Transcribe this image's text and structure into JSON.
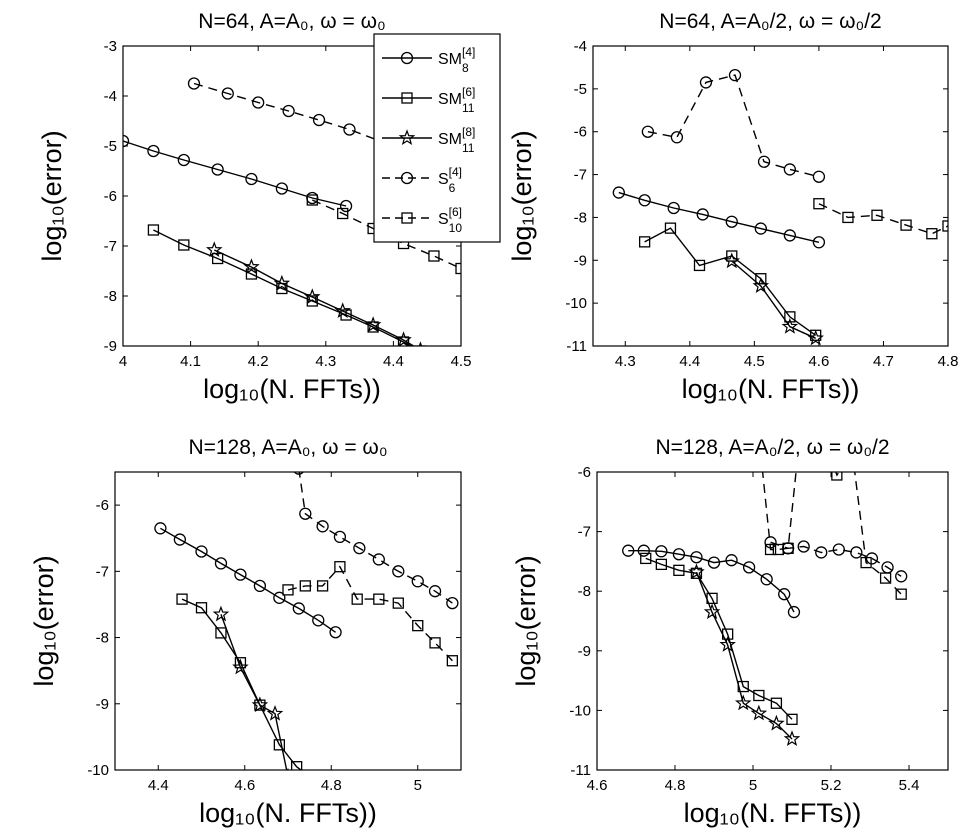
{
  "chart_data": [
    {
      "type": "line",
      "title": "N=64,  A=A₀,  ω = ω₀",
      "xlabel": "log₁₀(N. FFTs))",
      "ylabel": "log₁₀(error)",
      "xlim": [
        4,
        4.5
      ],
      "ylim": [
        -9,
        -3
      ],
      "xticks": [
        "4",
        "4.1",
        "4.2",
        "4.3",
        "4.4",
        "4.5"
      ],
      "yticks": [
        "-9",
        "-8",
        "-7",
        "-6",
        "-5",
        "-4",
        "-3"
      ],
      "legend": {
        "placement": "top-right",
        "entries": [
          {
            "name": "SM",
            "sup": "[4]",
            "sub": "8",
            "marker": "circle",
            "dash": false
          },
          {
            "name": "SM",
            "sup": "[6]",
            "sub": "11",
            "marker": "square",
            "dash": false
          },
          {
            "name": "SM",
            "sup": "[8]",
            "sub": "11",
            "marker": "star",
            "dash": false
          },
          {
            "name": "S",
            "sup": "[4]",
            "sub": "6",
            "marker": "circle",
            "dash": true
          },
          {
            "name": "S",
            "sup": "[6]",
            "sub": "10",
            "marker": "square",
            "dash": true
          }
        ]
      },
      "series": [
        {
          "marker": "circle",
          "dash": false,
          "x": [
            4.0,
            4.045,
            4.09,
            4.14,
            4.19,
            4.235,
            4.28,
            4.33
          ],
          "y": [
            -4.9,
            -5.1,
            -5.28,
            -5.47,
            -5.66,
            -5.85,
            -6.04,
            -6.2
          ]
        },
        {
          "marker": "square",
          "dash": false,
          "x": [
            4.045,
            4.09,
            4.14,
            4.19,
            4.235,
            4.28,
            4.33,
            4.37,
            4.415,
            4.44
          ],
          "y": [
            -6.68,
            -6.98,
            -7.25,
            -7.56,
            -7.85,
            -8.1,
            -8.38,
            -8.62,
            -8.92,
            -9.1
          ]
        },
        {
          "marker": "star",
          "dash": false,
          "x": [
            4.135,
            4.19,
            4.235,
            4.28,
            4.325,
            4.37,
            4.415,
            4.44
          ],
          "y": [
            -7.08,
            -7.42,
            -7.75,
            -8.02,
            -8.3,
            -8.58,
            -8.88,
            -9.08
          ]
        },
        {
          "marker": "circle",
          "dash": true,
          "x": [
            4.105,
            4.155,
            4.2,
            4.245,
            4.29,
            4.335,
            4.38,
            4.42,
            4.46,
            4.5
          ],
          "y": [
            -3.75,
            -3.95,
            -4.13,
            -4.3,
            -4.48,
            -4.67,
            -4.9,
            -5.2,
            -5.55,
            -5.9
          ]
        },
        {
          "marker": "square",
          "dash": true,
          "x": [
            4.28,
            4.325,
            4.37,
            4.415,
            4.46,
            4.5
          ],
          "y": [
            -6.08,
            -6.35,
            -6.65,
            -6.95,
            -7.2,
            -7.45
          ]
        }
      ]
    },
    {
      "type": "line",
      "title": "N=64,  A=A₀/2,  ω = ω₀/2",
      "xlabel": "log₁₀(N. FFTs))",
      "ylabel": "log₁₀(error)",
      "xlim": [
        4.25,
        4.8
      ],
      "ylim": [
        -11,
        -4
      ],
      "xticks": [
        "4.3",
        "4.4",
        "4.5",
        "4.6",
        "4.7",
        "4.8"
      ],
      "yticks": [
        "-11",
        "-10",
        "-9",
        "-8",
        "-7",
        "-6",
        "-5",
        "-4"
      ],
      "series": [
        {
          "marker": "circle",
          "dash": false,
          "x": [
            4.29,
            4.33,
            4.375,
            4.42,
            4.465,
            4.51,
            4.555,
            4.6
          ],
          "y": [
            -7.42,
            -7.6,
            -7.78,
            -7.93,
            -8.1,
            -8.26,
            -8.42,
            -8.58
          ]
        },
        {
          "marker": "square",
          "dash": false,
          "x": [
            4.33,
            4.37,
            4.415,
            4.465,
            4.51,
            4.555,
            4.595
          ],
          "y": [
            -8.57,
            -8.25,
            -9.12,
            -8.9,
            -9.43,
            -10.32,
            -10.75
          ]
        },
        {
          "marker": "star",
          "dash": false,
          "x": [
            4.465,
            4.51,
            4.555,
            4.595
          ],
          "y": [
            -9.02,
            -9.6,
            -10.55,
            -10.82
          ]
        },
        {
          "marker": "circle",
          "dash": true,
          "x": [
            4.335,
            4.38,
            4.425,
            4.47,
            4.515,
            4.555,
            4.6
          ],
          "y": [
            -6.0,
            -6.13,
            -4.85,
            -4.68,
            -6.7,
            -6.88,
            -7.05
          ]
        },
        {
          "marker": "square",
          "dash": true,
          "x": [
            4.6,
            4.645,
            4.69,
            4.735,
            4.775,
            4.8
          ],
          "y": [
            -7.68,
            -8.0,
            -7.95,
            -8.18,
            -8.38,
            -8.2
          ]
        }
      ]
    },
    {
      "type": "line",
      "title": "N=128,  A=A₀,  ω = ω₀",
      "xlabel": "log₁₀(N. FFTs))",
      "ylabel": "log₁₀(error)",
      "xlim": [
        4.3,
        5.1
      ],
      "ylim": [
        -10,
        -5.5
      ],
      "xticks": [
        "4.4",
        "4.6",
        "4.8",
        "5"
      ],
      "yticks": [
        "-10",
        "-9",
        "-8",
        "-7",
        "-6"
      ],
      "series": [
        {
          "marker": "circle",
          "dash": false,
          "x": [
            4.405,
            4.45,
            4.5,
            4.545,
            4.59,
            4.635,
            4.68,
            4.725,
            4.77,
            4.81
          ],
          "y": [
            -6.35,
            -6.52,
            -6.7,
            -6.88,
            -7.05,
            -7.22,
            -7.4,
            -7.56,
            -7.74,
            -7.92
          ]
        },
        {
          "marker": "square",
          "dash": false,
          "x": [
            4.455,
            4.5,
            4.545,
            4.59,
            4.635,
            4.68,
            4.72,
            4.75
          ],
          "y": [
            -7.42,
            -7.55,
            -7.93,
            -8.38,
            -9.02,
            -9.62,
            -9.95,
            -10.1
          ]
        },
        {
          "marker": "star",
          "dash": false,
          "x": [
            4.545,
            4.59,
            4.635,
            4.67,
            4.7
          ],
          "y": [
            -7.65,
            -8.45,
            -9.02,
            -9.15,
            -10.1
          ]
        },
        {
          "marker": "circle",
          "dash": true,
          "x": [
            4.725,
            4.74,
            4.78,
            4.82,
            4.865,
            4.91,
            4.955,
            5.0,
            5.04,
            5.08
          ],
          "y": [
            -5.45,
            -6.13,
            -6.32,
            -6.48,
            -6.65,
            -6.82,
            -7.0,
            -7.15,
            -7.3,
            -7.48
          ]
        },
        {
          "marker": "square",
          "dash": true,
          "x": [
            4.7,
            4.74,
            4.78,
            4.82,
            4.86,
            4.91,
            4.955,
            5.0,
            5.04,
            5.08
          ],
          "y": [
            -7.28,
            -7.22,
            -7.22,
            -6.93,
            -7.42,
            -7.42,
            -7.48,
            -7.82,
            -8.08,
            -8.35
          ]
        }
      ]
    },
    {
      "type": "line",
      "title": "N=128,  A=A₀/2,  ω = ω₀/2",
      "xlabel": "log₁₀(N. FFTs))",
      "ylabel": "log₁₀(error)",
      "xlim": [
        4.6,
        5.5
      ],
      "ylim": [
        -11,
        -6
      ],
      "xticks": [
        "4.6",
        "4.8",
        "5",
        "5.2",
        "5.4"
      ],
      "yticks": [
        "-11",
        "-10",
        "-9",
        "-8",
        "-7",
        "-6"
      ],
      "series": [
        {
          "marker": "circle",
          "dash": false,
          "x": [
            4.68,
            4.72,
            4.765,
            4.81,
            4.855,
            4.9,
            4.945,
            4.99,
            5.035,
            5.08,
            5.105
          ],
          "y": [
            -7.32,
            -7.32,
            -7.33,
            -7.38,
            -7.43,
            -7.52,
            -7.48,
            -7.6,
            -7.8,
            -8.05,
            -8.35
          ]
        },
        {
          "marker": "square",
          "dash": false,
          "x": [
            4.725,
            4.765,
            4.81,
            4.855,
            4.895,
            4.935,
            4.975,
            5.015,
            5.06,
            5.1
          ],
          "y": [
            -7.45,
            -7.55,
            -7.65,
            -7.7,
            -8.12,
            -8.72,
            -9.6,
            -9.75,
            -9.88,
            -10.15
          ]
        },
        {
          "marker": "star",
          "dash": false,
          "x": [
            4.855,
            4.895,
            4.935,
            4.975,
            5.015,
            5.06,
            5.1
          ],
          "y": [
            -7.68,
            -8.35,
            -8.9,
            -9.88,
            -10.05,
            -10.22,
            -10.48
          ]
        },
        {
          "marker": "circle",
          "dash": true,
          "x": [
            5.045,
            5.09,
            5.13,
            5.175,
            5.22,
            5.265,
            5.305,
            5.345,
            5.38
          ],
          "y": [
            -7.18,
            -7.28,
            -7.25,
            -7.35,
            -7.3,
            -7.35,
            -7.45,
            -7.6,
            -7.75
          ]
        },
        {
          "marker": "square",
          "dash": true,
          "x": [
            5.02,
            5.045,
            5.065,
            5.09,
            5.115,
            5.195,
            5.215,
            5.255,
            5.29,
            5.34,
            5.38
          ],
          "y": [
            -5.7,
            -7.3,
            -7.3,
            -7.28,
            -5.7,
            -5.7,
            -6.05,
            -5.7,
            -7.52,
            -7.78,
            -8.05
          ]
        }
      ]
    }
  ]
}
